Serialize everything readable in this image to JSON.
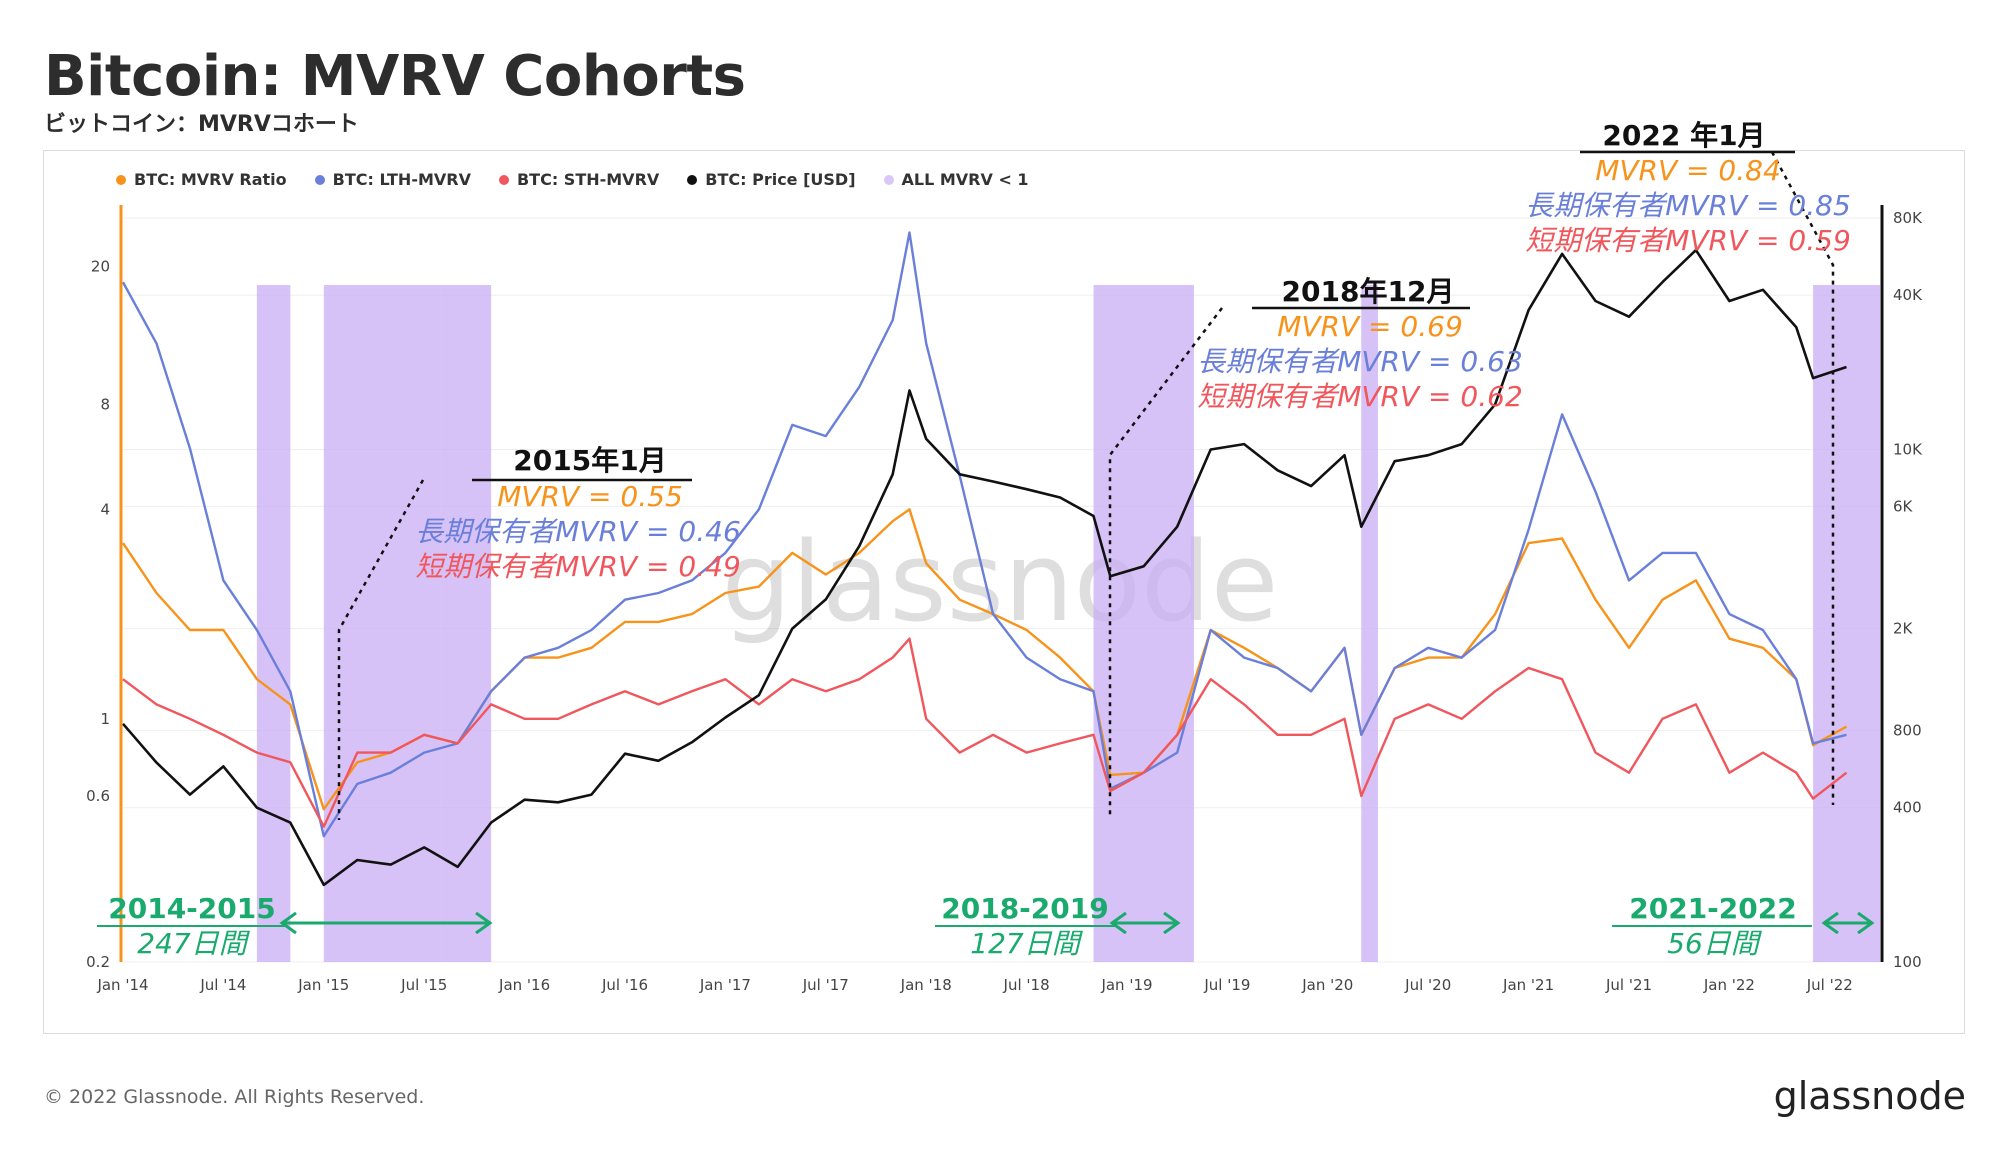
{
  "header": {
    "title": "Bitcoin: MVRV Cohorts",
    "subtitle": "ビットコイン：MVRVコホート"
  },
  "legend": [
    {
      "label": "BTC: MVRV Ratio",
      "color": "#f7931a"
    },
    {
      "label": "BTC: LTH-MVRV",
      "color": "#6a7fd9"
    },
    {
      "label": "BTC: STH-MVRV",
      "color": "#f0575d"
    },
    {
      "label": "BTC: Price [USD]",
      "color": "#111111"
    },
    {
      "label": "ALL MVRV < 1",
      "color": "#d9c7f7"
    }
  ],
  "footer": {
    "copyright": "© 2022 Glassnode. All Rights Reserved.",
    "brand": "glassnode"
  },
  "watermark": "glassnode",
  "annotations": [
    {
      "title": "2015年1月",
      "mvrv": "MVRV = 0.55",
      "lth": "長期保有者MVRV = 0.46",
      "sth": "短期保有者MVRV = 0.49"
    },
    {
      "title": "2018年12月",
      "mvrv": "MVRV = 0.69",
      "lth": "長期保有者MVRV = 0.63",
      "sth": "短期保有者MVRV = 0.62"
    },
    {
      "title": "2022 年1月",
      "mvrv": "MVRV = 0.84",
      "lth": "長期保有者MVRV = 0.85",
      "sth": "短期保有者MVRV = 0.59"
    }
  ],
  "periods": [
    {
      "range": "2014-2015",
      "days": "247日間"
    },
    {
      "range": "2018-2019",
      "days": "127日間"
    },
    {
      "range": "2021-2022",
      "days": "56日間"
    }
  ],
  "colors": {
    "mvrv": "#f7931a",
    "lth": "#6a7fd9",
    "sth": "#f0575d",
    "price": "#111111",
    "shade": "#c9aef5",
    "period": "#1aaa6e"
  },
  "chart_data": {
    "type": "line",
    "x_ticks": [
      "Jan '14",
      "Jul '14",
      "Jan '15",
      "Jul '15",
      "Jan '16",
      "Jul '16",
      "Jan '17",
      "Jul '17",
      "Jan '18",
      "Jul '18",
      "Jan '19",
      "Jul '19",
      "Jan '20",
      "Jul '20",
      "Jan '21",
      "Jul '21",
      "Jan '22",
      "Jul '22"
    ],
    "y_left_scale": "log",
    "y_left_ticks": [
      0.2,
      0.6,
      1,
      4,
      8,
      20
    ],
    "y_right_scale": "log",
    "y_right_ticks": [
      "100",
      "400",
      "800",
      "2K",
      "6K",
      "10K",
      "40K",
      "80K"
    ],
    "x": [
      "2014-01",
      "2014-03",
      "2014-05",
      "2014-07",
      "2014-09",
      "2014-11",
      "2015-01",
      "2015-03",
      "2015-05",
      "2015-07",
      "2015-09",
      "2015-11",
      "2016-01",
      "2016-03",
      "2016-05",
      "2016-07",
      "2016-09",
      "2016-11",
      "2017-01",
      "2017-03",
      "2017-05",
      "2017-07",
      "2017-09",
      "2017-11",
      "2017-12",
      "2018-01",
      "2018-03",
      "2018-05",
      "2018-07",
      "2018-09",
      "2018-11",
      "2018-12",
      "2019-02",
      "2019-04",
      "2019-06",
      "2019-08",
      "2019-10",
      "2019-12",
      "2020-02",
      "2020-03",
      "2020-05",
      "2020-07",
      "2020-09",
      "2020-11",
      "2021-01",
      "2021-03",
      "2021-05",
      "2021-07",
      "2021-09",
      "2021-11",
      "2022-01",
      "2022-03",
      "2022-05",
      "2022-06",
      "2022-08"
    ],
    "series": [
      {
        "name": "BTC: MVRV Ratio",
        "values": [
          3.2,
          2.3,
          1.8,
          1.8,
          1.3,
          1.1,
          0.55,
          0.75,
          0.8,
          0.9,
          0.85,
          1.2,
          1.5,
          1.5,
          1.6,
          1.9,
          1.9,
          2.0,
          2.3,
          2.4,
          3.0,
          2.6,
          3.0,
          3.7,
          4.0,
          2.8,
          2.2,
          2.0,
          1.8,
          1.5,
          1.2,
          0.69,
          0.7,
          0.9,
          1.8,
          1.6,
          1.4,
          1.2,
          1.6,
          0.9,
          1.4,
          1.5,
          1.5,
          2.0,
          3.2,
          3.3,
          2.2,
          1.6,
          2.2,
          2.5,
          1.7,
          1.6,
          1.3,
          0.84,
          0.95
        ]
      },
      {
        "name": "BTC: LTH-MVRV",
        "values": [
          18,
          12,
          6,
          2.5,
          1.8,
          1.2,
          0.46,
          0.65,
          0.7,
          0.8,
          0.85,
          1.2,
          1.5,
          1.6,
          1.8,
          2.2,
          2.3,
          2.5,
          3.0,
          4.0,
          7.0,
          6.5,
          9.0,
          14.0,
          25.0,
          12.0,
          5.0,
          2.0,
          1.5,
          1.3,
          1.2,
          0.63,
          0.7,
          0.8,
          1.8,
          1.5,
          1.4,
          1.2,
          1.6,
          0.9,
          1.4,
          1.6,
          1.5,
          1.8,
          3.5,
          7.5,
          4.5,
          2.5,
          3.0,
          3.0,
          2.0,
          1.8,
          1.3,
          0.85,
          0.9
        ]
      },
      {
        "name": "BTC: STH-MVRV",
        "values": [
          1.3,
          1.1,
          1.0,
          0.9,
          0.8,
          0.75,
          0.49,
          0.8,
          0.8,
          0.9,
          0.85,
          1.1,
          1.0,
          1.0,
          1.1,
          1.2,
          1.1,
          1.2,
          1.3,
          1.1,
          1.3,
          1.2,
          1.3,
          1.5,
          1.7,
          1.0,
          0.8,
          0.9,
          0.8,
          0.85,
          0.9,
          0.62,
          0.7,
          0.9,
          1.3,
          1.1,
          0.9,
          0.9,
          1.0,
          0.6,
          1.0,
          1.1,
          1.0,
          1.2,
          1.4,
          1.3,
          0.8,
          0.7,
          1.0,
          1.1,
          0.7,
          0.8,
          0.7,
          0.59,
          0.7
        ]
      }
    ],
    "price_series": {
      "name": "BTC: Price [USD]",
      "values": [
        850,
        600,
        450,
        580,
        400,
        350,
        200,
        250,
        240,
        280,
        235,
        350,
        430,
        420,
        450,
        650,
        610,
        720,
        900,
        1100,
        2000,
        2600,
        4200,
        8000,
        17000,
        11000,
        8000,
        7500,
        7000,
        6500,
        5500,
        3200,
        3500,
        5000,
        10000,
        10500,
        8300,
        7200,
        9500,
        5000,
        9000,
        9500,
        10500,
        15000,
        35000,
        58000,
        38000,
        33000,
        45000,
        60000,
        38000,
        42000,
        30000,
        19000,
        21000
      ]
    },
    "shaded_regions_label": "ALL MVRV < 1",
    "shaded_regions": [
      [
        "2014-09",
        "2014-10"
      ],
      [
        "2015-01",
        "2015-07"
      ],
      [
        "2015-08",
        "2015-10"
      ],
      [
        "2018-11",
        "2019-04"
      ],
      [
        "2020-03",
        "2020-03"
      ],
      [
        "2022-06",
        "2022-07"
      ],
      [
        "2022-08",
        "2022-09"
      ]
    ]
  }
}
